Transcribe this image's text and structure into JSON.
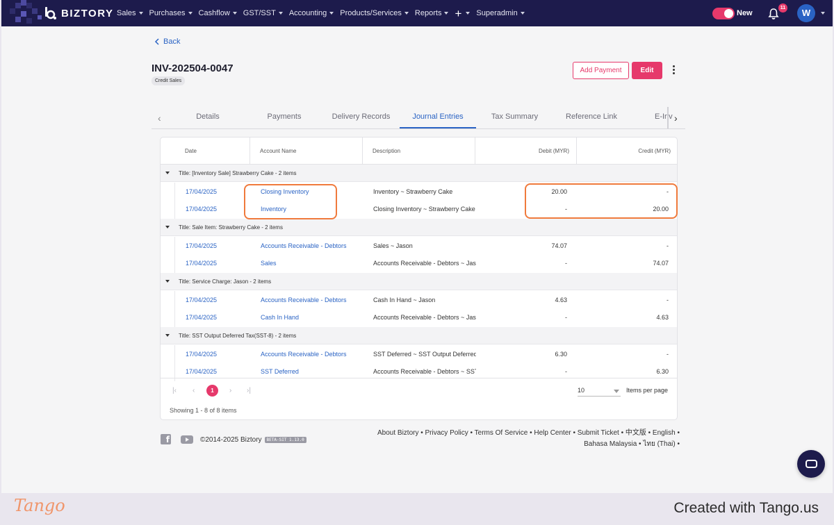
{
  "nav": {
    "brand": "BIZTORY",
    "items": [
      {
        "label": "Sales",
        "caret": true
      },
      {
        "label": "Purchases",
        "caret": true
      },
      {
        "label": "Cashflow",
        "caret": true
      },
      {
        "label": "GST/SST",
        "caret": true
      },
      {
        "label": "Accounting",
        "caret": true
      },
      {
        "label": "Products/Services",
        "caret": true
      },
      {
        "label": "Reports",
        "caret": true
      },
      {
        "label": "+",
        "caret": true
      },
      {
        "label": "Superadmin",
        "caret": true
      }
    ],
    "toggle_label": "New",
    "notification_count": "11",
    "avatar_initial": "W"
  },
  "header": {
    "back_label": "Back",
    "invoice_number": "INV-202504-0047",
    "chip": "Credit Sales",
    "add_payment": "Add Payment",
    "edit": "Edit"
  },
  "tabs": [
    "Details",
    "Payments",
    "Delivery Records",
    "Journal Entries",
    "Tax Summary",
    "Reference Link",
    "E-Inv"
  ],
  "active_tab": "Journal Entries",
  "table": {
    "columns": [
      "Date",
      "Account Name",
      "Description",
      "Debit (MYR)",
      "Credit (MYR)"
    ],
    "groups": [
      {
        "title": "Title: [Inventory Sale] Strawberry Cake - 2 items",
        "rows": [
          {
            "date": "17/04/2025",
            "account": "Closing Inventory",
            "description": "Inventory ~ Strawberry Cake",
            "debit": "20.00",
            "credit": "-"
          },
          {
            "date": "17/04/2025",
            "account": "Inventory",
            "description": "Closing Inventory ~ Strawberry Cake",
            "debit": "-",
            "credit": "20.00"
          }
        ]
      },
      {
        "title": "Title: Sale Item: Strawberry Cake - 2 items",
        "rows": [
          {
            "date": "17/04/2025",
            "account": "Accounts Receivable - Debtors",
            "description": "Sales ~ Jason",
            "debit": "74.07",
            "credit": "-"
          },
          {
            "date": "17/04/2025",
            "account": "Sales",
            "description": "Accounts Receivable - Debtors ~ Jason",
            "debit": "-",
            "credit": "74.07"
          }
        ]
      },
      {
        "title": "Title: Service Charge: Jason - 2 items",
        "rows": [
          {
            "date": "17/04/2025",
            "account": "Accounts Receivable - Debtors",
            "description": "Cash In Hand ~ Jason",
            "debit": "4.63",
            "credit": "-"
          },
          {
            "date": "17/04/2025",
            "account": "Cash In Hand",
            "description": "Accounts Receivable - Debtors ~ Jason",
            "debit": "-",
            "credit": "4.63"
          }
        ]
      },
      {
        "title": "Title: SST Output Deferred Tax(SST-8) - 2 items",
        "rows": [
          {
            "date": "17/04/2025",
            "account": "Accounts Receivable - Debtors",
            "description": "SST Deferred ~ SST Output Deferred Tax",
            "debit": "6.30",
            "credit": "-"
          },
          {
            "date": "17/04/2025",
            "account": "SST Deferred",
            "description": "Accounts Receivable - Debtors ~ SST",
            "debit": "-",
            "credit": "6.30"
          }
        ]
      }
    ]
  },
  "pagination": {
    "current_page": "1",
    "per_page": "10",
    "per_page_label": "Items per page",
    "showing": "Showing 1 - 8 of 8 items"
  },
  "footer": {
    "copyright": "©2014-2025 Biztory",
    "version": "BETA-SIT 1.13.0",
    "links_line1": "About Biztory • Privacy Policy • Terms Of Service • Help Center • Submit Ticket • 中文版 • English •",
    "links_line2": "Bahasa Malaysia • ไทย (Thai) •"
  },
  "tango": {
    "logo": "Tango",
    "credit": "Created with Tango.us"
  },
  "colors": {
    "nav_bg": "#1d1b4c",
    "accent": "#e6396b",
    "link": "#2a63c4",
    "highlight": "#f07a3c"
  }
}
